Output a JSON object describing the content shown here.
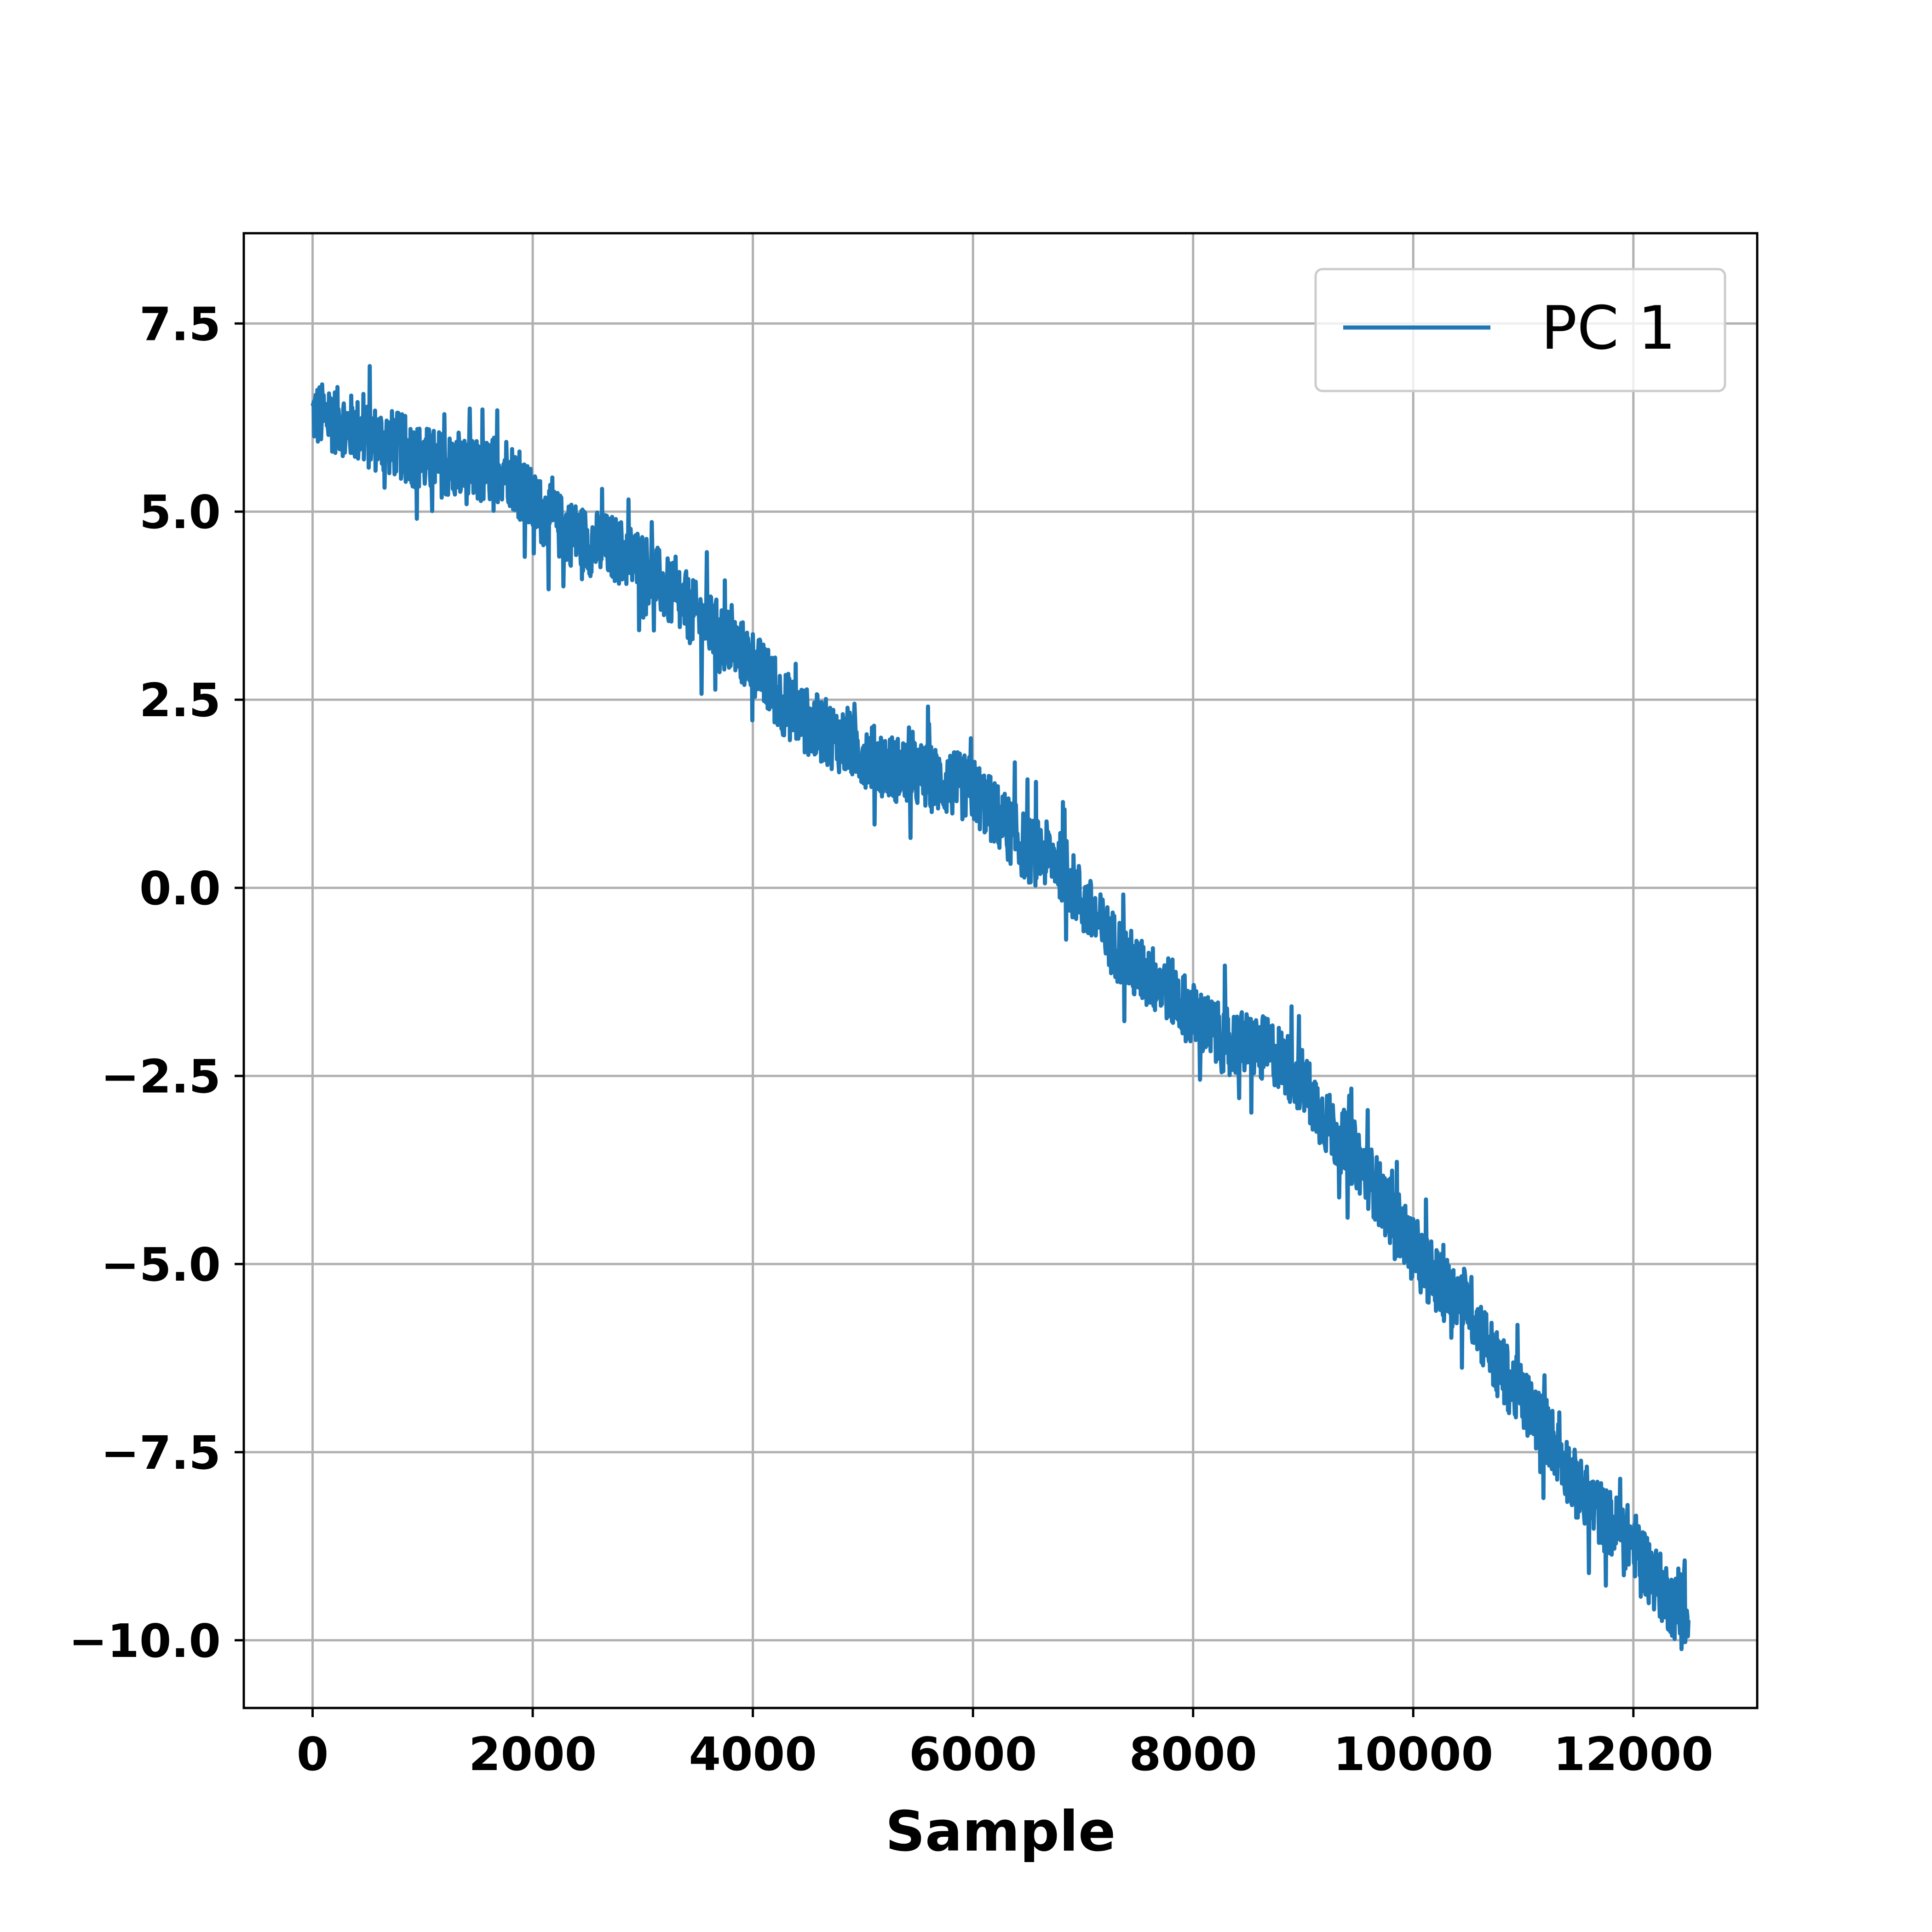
{
  "chart_data": {
    "type": "line",
    "title": "",
    "xlabel": "Sample",
    "ylabel": "",
    "xlim": [
      -625,
      13125
    ],
    "ylim": [
      -10.9,
      8.7
    ],
    "x_ticks": [
      0,
      2000,
      4000,
      6000,
      8000,
      10000,
      12000
    ],
    "x_tick_labels": [
      "0",
      "2000",
      "4000",
      "6000",
      "8000",
      "10000",
      "12000"
    ],
    "y_ticks": [
      7.5,
      5.0,
      2.5,
      0.0,
      -2.5,
      -5.0,
      -7.5,
      -10.0
    ],
    "y_tick_labels": [
      "7.5",
      "5.0",
      "2.5",
      "0.0",
      "−2.5",
      "−5.0",
      "−7.5",
      "−10.0"
    ],
    "grid": true,
    "legend": {
      "position": "top-right",
      "entries": [
        "PC 1"
      ]
    },
    "series": [
      {
        "name": "PC 1",
        "color": "#1f77b4",
        "x": [
          0,
          250,
          500,
          750,
          1000,
          1250,
          1500,
          1750,
          2000,
          2250,
          2500,
          2750,
          3000,
          3250,
          3500,
          3750,
          4000,
          4250,
          4500,
          4750,
          5000,
          5250,
          5500,
          5750,
          6000,
          6250,
          6500,
          6750,
          7000,
          7250,
          7500,
          7750,
          8000,
          8250,
          8500,
          8750,
          9000,
          9250,
          9500,
          9750,
          10000,
          10250,
          10500,
          10750,
          11000,
          11250,
          11500,
          11750,
          12000,
          12250,
          12500
        ],
        "y": [
          6.3,
          6.2,
          6.0,
          5.9,
          5.7,
          5.6,
          5.5,
          5.6,
          5.1,
          4.8,
          4.6,
          4.5,
          4.3,
          3.9,
          3.6,
          3.3,
          3.0,
          2.5,
          2.2,
          2.0,
          1.8,
          1.6,
          1.5,
          1.4,
          1.3,
          0.9,
          0.5,
          0.4,
          -0.2,
          -0.7,
          -1.1,
          -1.3,
          -1.7,
          -2.0,
          -2.1,
          -2.2,
          -2.6,
          -3.2,
          -3.6,
          -4.2,
          -4.8,
          -5.3,
          -5.5,
          -6.3,
          -6.8,
          -7.3,
          -8.0,
          -8.4,
          -8.7,
          -9.3,
          -9.8
        ],
        "noise_amplitude": 0.45
      }
    ]
  }
}
